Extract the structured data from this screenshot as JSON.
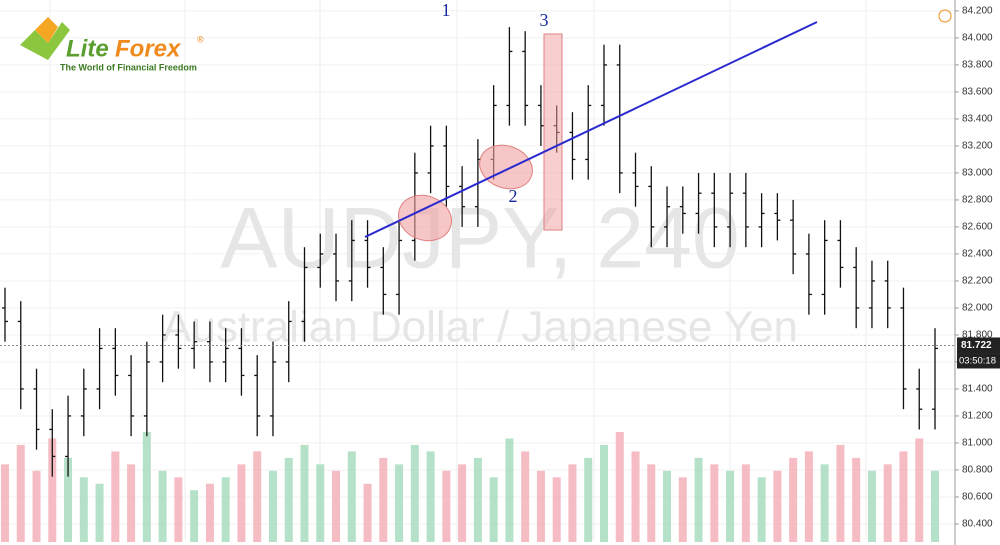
{
  "chart_data": {
    "type": "ohlc",
    "logo": {
      "lite": "Lite",
      "forex": "Forex",
      "mark": "®",
      "tagline": "The World of Financial Freedom"
    },
    "watermark": "AUDJPY, 240",
    "subtitle": "Australian Dollar / Japanese Yen",
    "annotations": [
      "1",
      "2",
      "3"
    ],
    "ylim": [
      80.244,
      84.281
    ],
    "yticks": [
      {
        "value": 80.4,
        "label": "80.400"
      },
      {
        "value": 80.6,
        "label": "80.600"
      },
      {
        "value": 80.8,
        "label": "80.800"
      },
      {
        "value": 81.0,
        "label": "81.000"
      },
      {
        "value": 81.2,
        "label": "81.200"
      },
      {
        "value": 81.4,
        "label": "81.400"
      },
      {
        "value": 81.6,
        "label": "81.600"
      },
      {
        "value": 81.8,
        "label": "81.800"
      },
      {
        "value": 82.0,
        "label": "82.000"
      },
      {
        "value": 82.2,
        "label": "82.200"
      },
      {
        "value": 82.4,
        "label": "82.400"
      },
      {
        "value": 82.6,
        "label": "82.600"
      },
      {
        "value": 82.8,
        "label": "82.800"
      },
      {
        "value": 83.0,
        "label": "83.000"
      },
      {
        "value": 83.2,
        "label": "83.200"
      },
      {
        "value": 83.4,
        "label": "83.400"
      },
      {
        "value": 83.6,
        "label": "83.600"
      },
      {
        "value": 83.8,
        "label": "83.800"
      },
      {
        "value": 84.0,
        "label": "84.000"
      },
      {
        "value": 84.2,
        "label": "84.200"
      }
    ],
    "last_price": 81.722,
    "timer": "03:50:18",
    "color": "#111111",
    "volume_up_color": "#a8dcc0",
    "volume_down_color": "#f4b0b8",
    "open": [
      82.0,
      81.9,
      81.4,
      81.1,
      80.9,
      81.2,
      81.4,
      81.7,
      81.5,
      81.2,
      81.6,
      81.8,
      81.7,
      81.75,
      81.6,
      81.7,
      81.5,
      81.2,
      81.6,
      81.9,
      82.3,
      82.4,
      82.2,
      82.5,
      82.3,
      82.1,
      82.5,
      83.0,
      83.2,
      82.9,
      82.75,
      83.1,
      83.5,
      83.9,
      83.5,
      83.35,
      83.3,
      83.1,
      83.5,
      83.8,
      83.0,
      82.9,
      82.6,
      82.75,
      82.7,
      82.85,
      82.6,
      82.85,
      82.6,
      82.7,
      82.65,
      82.4,
      82.1,
      82.5,
      82.3,
      82.0,
      82.2,
      82.0,
      81.4,
      81.25
    ],
    "high": [
      82.15,
      82.05,
      81.55,
      81.25,
      81.35,
      81.55,
      81.85,
      81.85,
      81.65,
      81.75,
      81.95,
      81.95,
      81.9,
      81.9,
      81.85,
      81.85,
      81.65,
      81.75,
      82.05,
      82.45,
      82.55,
      82.55,
      82.65,
      82.65,
      82.45,
      82.65,
      83.15,
      83.35,
      83.35,
      83.05,
      83.25,
      83.65,
      84.08,
      84.05,
      83.65,
      83.5,
      83.45,
      83.65,
      83.95,
      83.95,
      83.15,
      83.05,
      82.9,
      82.9,
      83.0,
      83.0,
      83.0,
      83.0,
      82.85,
      82.85,
      82.8,
      82.55,
      82.65,
      82.65,
      82.45,
      82.35,
      82.35,
      82.15,
      81.55,
      81.85
    ],
    "low": [
      81.75,
      81.25,
      80.95,
      80.75,
      80.75,
      81.05,
      81.25,
      81.35,
      81.05,
      81.05,
      81.45,
      81.55,
      81.55,
      81.45,
      81.45,
      81.35,
      81.05,
      81.05,
      81.45,
      81.75,
      82.15,
      82.05,
      82.05,
      82.15,
      81.95,
      81.95,
      82.35,
      82.85,
      82.75,
      82.6,
      82.6,
      82.95,
      83.35,
      83.35,
      83.2,
      83.15,
      82.95,
      82.95,
      83.35,
      82.85,
      82.75,
      82.45,
      82.45,
      82.55,
      82.55,
      82.45,
      82.45,
      82.45,
      82.45,
      82.5,
      82.25,
      81.95,
      81.95,
      82.15,
      81.85,
      81.85,
      81.85,
      81.25,
      81.1,
      81.1
    ],
    "close": [
      81.9,
      81.4,
      81.1,
      80.9,
      81.2,
      81.4,
      81.7,
      81.5,
      81.2,
      81.6,
      81.8,
      81.7,
      81.75,
      81.6,
      81.7,
      81.5,
      81.2,
      81.6,
      81.9,
      82.3,
      82.4,
      82.2,
      82.5,
      82.3,
      82.1,
      82.5,
      83.0,
      83.2,
      82.9,
      82.75,
      83.1,
      83.5,
      83.9,
      83.5,
      83.35,
      83.3,
      83.1,
      83.5,
      83.8,
      83.0,
      82.9,
      82.6,
      82.75,
      82.7,
      82.85,
      82.6,
      82.85,
      82.6,
      82.7,
      82.65,
      82.4,
      82.1,
      82.5,
      82.3,
      82.0,
      82.2,
      82.0,
      81.4,
      81.25,
      81.7
    ],
    "volume": [
      60,
      75,
      55,
      80,
      65,
      50,
      45,
      70,
      60,
      85,
      55,
      50,
      40,
      45,
      50,
      60,
      70,
      55,
      65,
      75,
      60,
      55,
      70,
      45,
      65,
      60,
      75,
      70,
      55,
      60,
      65,
      50,
      80,
      70,
      55,
      50,
      60,
      65,
      75,
      85,
      70,
      60,
      55,
      50,
      65,
      60,
      55,
      60,
      50,
      55,
      65,
      70,
      60,
      75,
      65,
      55,
      60,
      70,
      80,
      55
    ]
  }
}
